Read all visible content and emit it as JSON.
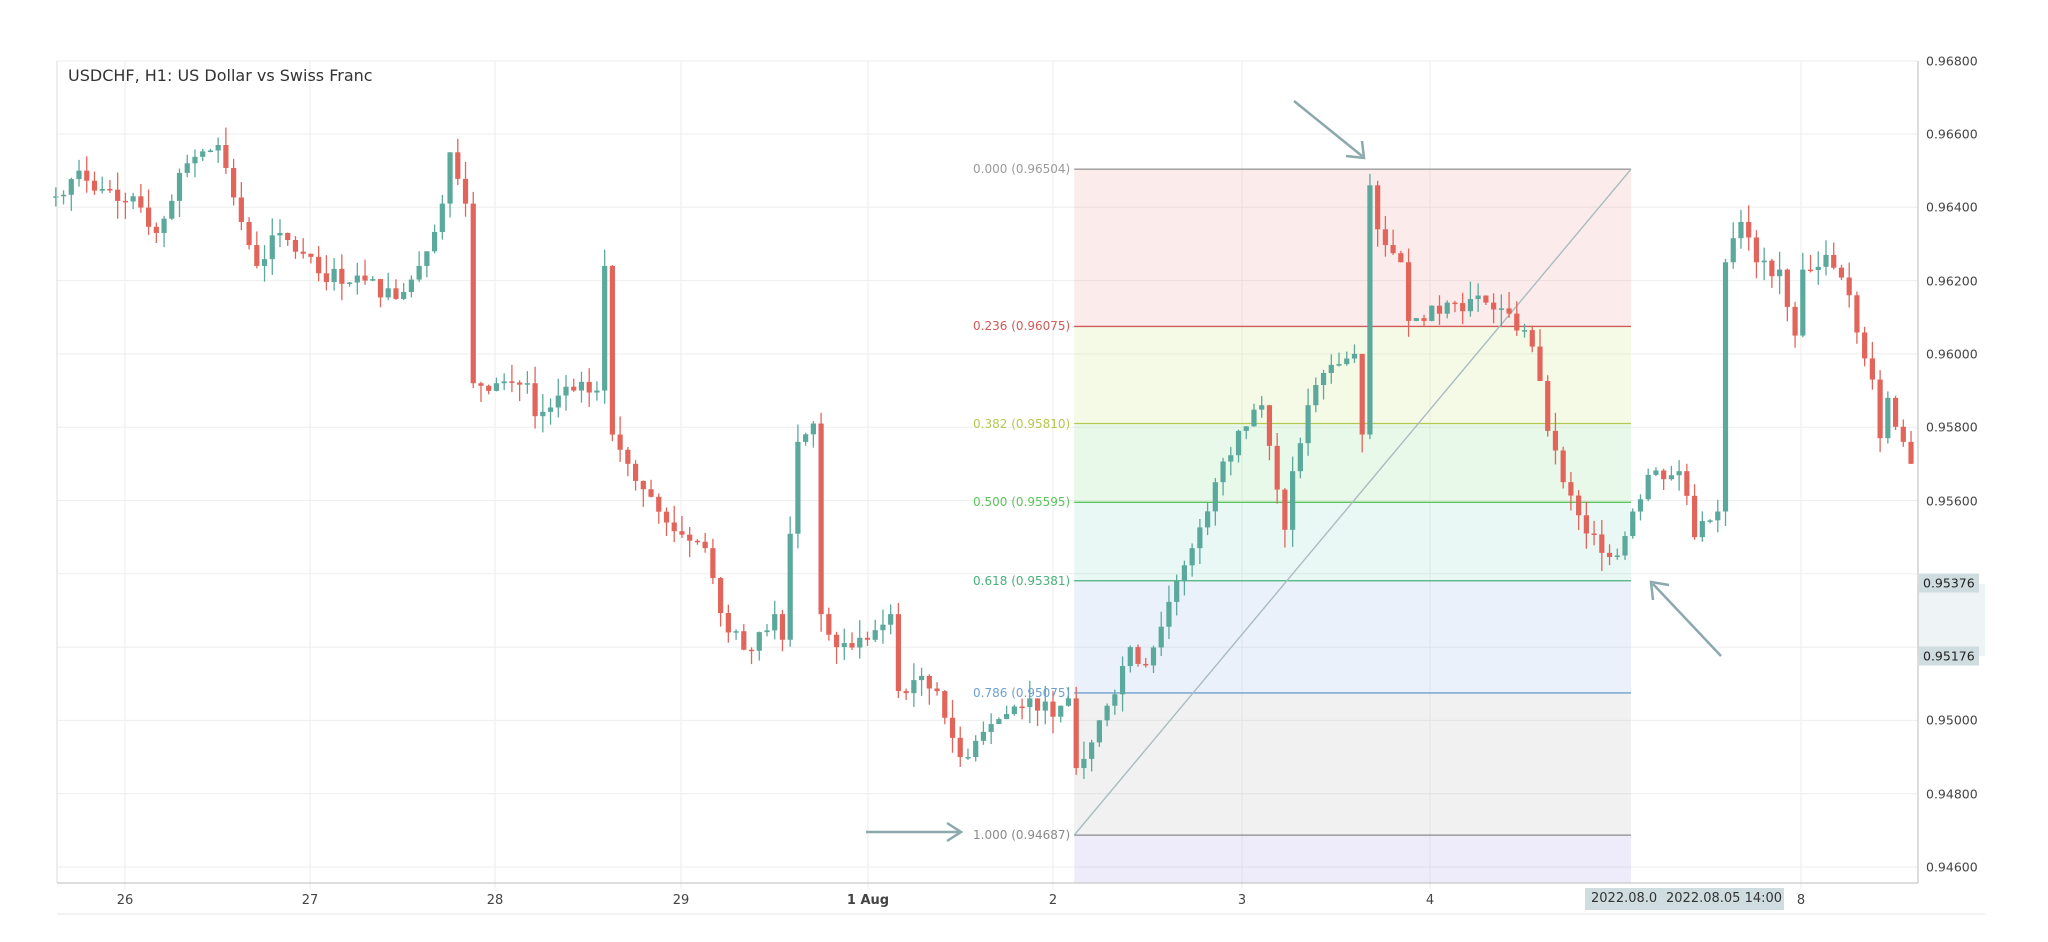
{
  "chart_data": {
    "type": "candlestick",
    "title": "USDCHF, H1: US Dollar vs Swiss Franc",
    "symbol": "USDCHF",
    "timeframe": "H1",
    "ylim": [
      0.9458,
      0.9682
    ],
    "y_ticks": [
      "0.94600",
      "0.94800",
      "0.95000",
      "0.95200",
      "0.95400",
      "0.95600",
      "0.95800",
      "0.96000",
      "0.96200",
      "0.96400",
      "0.96600",
      "0.96800"
    ],
    "x_ticks": [
      "26",
      "27",
      "28",
      "29",
      "1 Aug",
      "2",
      "3",
      "4",
      "8"
    ],
    "grid": true,
    "colors": {
      "up": "#5aa99c",
      "down": "#e2655b"
    },
    "price_path": [
      [
        "07-25 15",
        0.9643
      ],
      [
        "07-25 18",
        0.965
      ],
      [
        "07-25 21",
        0.9645
      ],
      [
        "07-26 01",
        0.9643
      ],
      [
        "07-26 04",
        0.9633
      ],
      [
        "07-26 08",
        0.9652
      ],
      [
        "07-26 12",
        0.9657
      ],
      [
        "07-26 15",
        0.9636
      ],
      [
        "07-26 17",
        0.9624
      ],
      [
        "07-26 20",
        0.9633
      ],
      [
        "07-27 01",
        0.9622
      ],
      [
        "07-27 07",
        0.962
      ],
      [
        "07-27 11",
        0.9615
      ],
      [
        "07-27 14",
        0.9624
      ],
      [
        "07-27 17",
        0.9641
      ],
      [
        "07-27 18",
        0.9655
      ],
      [
        "07-27 20",
        0.9641
      ],
      [
        "07-27 21",
        0.9592
      ],
      [
        "07-28 00",
        0.9592
      ],
      [
        "07-28 04",
        0.9592
      ],
      [
        "07-28 05",
        0.9583
      ],
      [
        "07-28 10",
        0.959
      ],
      [
        "07-28 13",
        0.959
      ],
      [
        "07-28 14",
        0.9624
      ],
      [
        "07-28 15",
        0.9578
      ],
      [
        "07-28 17",
        0.957
      ],
      [
        "07-28 20",
        0.9561
      ],
      [
        "07-28 22",
        0.9554
      ],
      [
        "07-29 03",
        0.9547
      ],
      [
        "07-29 06",
        0.9524
      ],
      [
        "07-29 09",
        0.9519
      ],
      [
        "07-29 12",
        0.9529
      ],
      [
        "07-29 13",
        0.9522
      ],
      [
        "07-29 15",
        0.9576
      ],
      [
        "07-29 17",
        0.9581
      ],
      [
        "07-29 18",
        0.9529
      ],
      [
        "07-29 20",
        0.952
      ],
      [
        "08-01 00",
        0.9522
      ],
      [
        "08-01 03",
        0.9529
      ],
      [
        "08-01 04",
        0.9508
      ],
      [
        "08-01 06",
        0.9511
      ],
      [
        "08-01 09",
        0.9508
      ],
      [
        "08-01 12",
        0.949
      ],
      [
        "08-01 16",
        0.9499
      ],
      [
        "08-01 21",
        0.9506
      ],
      [
        "08-02 00",
        0.9501
      ],
      [
        "08-02 01",
        0.9504
      ],
      [
        "08-02 02",
        0.9506
      ],
      [
        "08-02 03",
        0.9487
      ],
      [
        "08-02 05",
        0.9494
      ],
      [
        "08-02 07",
        0.9504
      ],
      [
        "08-02 10",
        0.952
      ],
      [
        "08-02 12",
        0.9515
      ],
      [
        "08-02 16",
        0.9538
      ],
      [
        "08-02 18",
        0.9547
      ],
      [
        "08-02 21",
        0.9565
      ],
      [
        "08-03 00",
        0.9579
      ],
      [
        "08-03 03",
        0.9586
      ],
      [
        "08-03 06",
        0.9552
      ],
      [
        "08-03 07",
        0.9568
      ],
      [
        "08-03 09",
        0.9586
      ],
      [
        "08-03 12",
        0.9597
      ],
      [
        "08-03 15",
        0.96
      ],
      [
        "08-03 16",
        0.9578
      ],
      [
        "08-03 17",
        0.9646
      ],
      [
        "08-03 18",
        0.9634
      ],
      [
        "08-03 21",
        0.9625
      ],
      [
        "08-03 22",
        0.9609
      ],
      [
        "08-04 00",
        0.9609
      ],
      [
        "08-04 03",
        0.9614
      ],
      [
        "08-04 08",
        0.9614
      ],
      [
        "08-04 11",
        0.9611
      ],
      [
        "08-04 14",
        0.9602
      ],
      [
        "08-04 16",
        0.9579
      ],
      [
        "08-04 18",
        0.9565
      ],
      [
        "08-04 21",
        0.9551
      ],
      [
        "08-05 01",
        0.9545
      ],
      [
        "08-05 03",
        0.9557
      ],
      [
        "08-05 05",
        0.9567
      ],
      [
        "08-05 09",
        0.9568
      ],
      [
        "08-05 11",
        0.955
      ],
      [
        "08-05 14",
        0.9557
      ],
      [
        "08-05 15",
        0.9625
      ],
      [
        "08-05 17",
        0.9636
      ],
      [
        "08-05 19",
        0.9625
      ],
      [
        "08-05 22",
        0.9623
      ],
      [
        "08-08 00",
        0.9605
      ],
      [
        "08-08 01",
        0.9623
      ],
      [
        "08-08 04",
        0.9627
      ],
      [
        "08-08 07",
        0.9616
      ],
      [
        "08-08 10",
        0.9593
      ],
      [
        "08-08 11",
        0.9577
      ],
      [
        "08-08 12",
        0.9588
      ],
      [
        "08-08 14",
        0.9576
      ],
      [
        "08-08 15",
        0.957
      ]
    ],
    "fibonacci": {
      "from": {
        "time": "08-02 03",
        "price": 0.94687
      },
      "to": {
        "time": "08-03 17",
        "price": 0.96504
      },
      "extend_to_time": "08-05 02",
      "levels": [
        {
          "ratio": 0.0,
          "price": 0.96504,
          "label": "0.000 (0.96504)",
          "color": "#9a9a9a",
          "fill": "rgba(232,120,120,0.15)"
        },
        {
          "ratio": 0.236,
          "price": 0.96075,
          "label": "0.236 (0.96075)",
          "color": "#d05a55",
          "fill": "rgba(200,230,120,0.18)"
        },
        {
          "ratio": 0.382,
          "price": 0.9581,
          "label": "0.382 (0.95810)",
          "color": "#b3c94f",
          "fill": "rgba(120,220,120,0.16)"
        },
        {
          "ratio": 0.5,
          "price": 0.95595,
          "label": "0.500 (0.95595)",
          "color": "#5cc45c",
          "fill": "rgba(110,210,180,0.15)"
        },
        {
          "ratio": 0.618,
          "price": 0.95381,
          "label": "0.618 (0.95381)",
          "color": "#48b07a",
          "fill": "rgba(140,180,230,0.18)"
        },
        {
          "ratio": 0.786,
          "price": 0.95075,
          "label": "0.786 (0.95075)",
          "color": "#6fa0d0",
          "fill": "rgba(180,180,180,0.18)"
        },
        {
          "ratio": 1.0,
          "price": 0.94687,
          "label": "1.000 (0.94687)",
          "color": "#8a8a8a",
          "fill": "rgba(170,160,230,0.2)"
        }
      ]
    },
    "highlighted_prices": [
      "0.95376",
      "0.95176"
    ],
    "highlighted_times": [
      "2022.08.0",
      "2022.08.05 14:00"
    ]
  }
}
